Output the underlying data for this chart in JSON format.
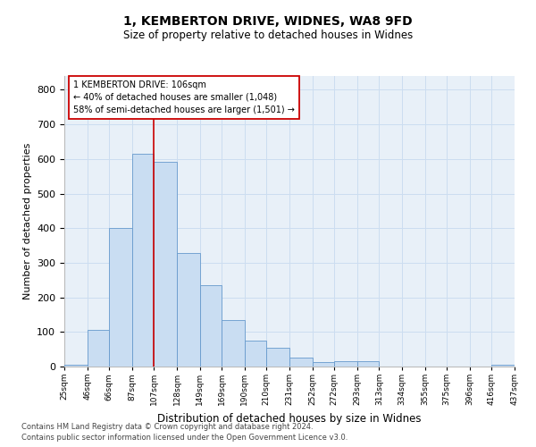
{
  "title1": "1, KEMBERTON DRIVE, WIDNES, WA8 9FD",
  "title2": "Size of property relative to detached houses in Widnes",
  "xlabel": "Distribution of detached houses by size in Widnes",
  "ylabel": "Number of detached properties",
  "footnote1": "Contains HM Land Registry data © Crown copyright and database right 2024.",
  "footnote2": "Contains public sector information licensed under the Open Government Licence v3.0.",
  "annotation_line1": "1 KEMBERTON DRIVE: 106sqm",
  "annotation_line2": "← 40% of detached houses are smaller (1,048)",
  "annotation_line3": "58% of semi-detached houses are larger (1,501) →",
  "bar_color": "#c9ddf2",
  "bar_edge_color": "#6699cc",
  "grid_color": "#ccddf0",
  "background_color": "#e8f0f8",
  "vline_color": "#cc0000",
  "vline_x": 107,
  "categories": [
    "25sqm",
    "46sqm",
    "66sqm",
    "87sqm",
    "107sqm",
    "128sqm",
    "149sqm",
    "169sqm",
    "190sqm",
    "210sqm",
    "231sqm",
    "252sqm",
    "272sqm",
    "293sqm",
    "313sqm",
    "334sqm",
    "355sqm",
    "375sqm",
    "396sqm",
    "416sqm",
    "437sqm"
  ],
  "bin_edges": [
    25,
    46,
    66,
    87,
    107,
    128,
    149,
    169,
    190,
    210,
    231,
    252,
    272,
    293,
    313,
    334,
    355,
    375,
    396,
    416,
    437
  ],
  "values": [
    6,
    106,
    401,
    614,
    592,
    328,
    236,
    135,
    76,
    53,
    25,
    12,
    15,
    15,
    1,
    0,
    0,
    0,
    0,
    5
  ],
  "ylim": [
    0,
    840
  ],
  "yticks": [
    0,
    100,
    200,
    300,
    400,
    500,
    600,
    700,
    800
  ]
}
